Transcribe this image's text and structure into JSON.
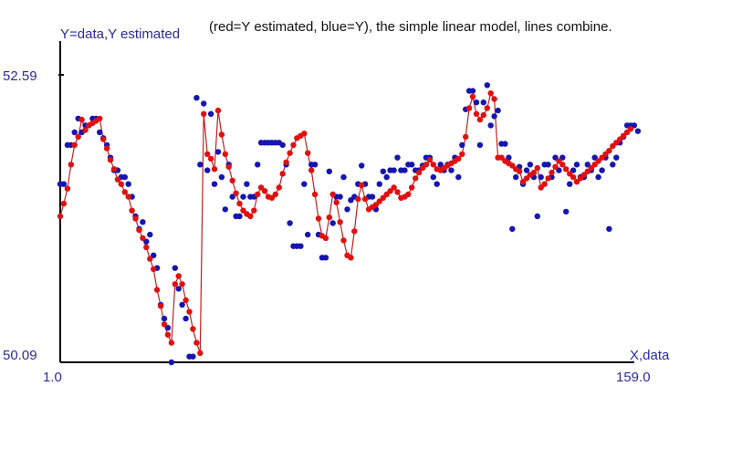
{
  "chart_data": {
    "type": "scatter",
    "ylabel": "Y=data,Y estimated",
    "xlabel": "X,data",
    "caption": "(red=Y estimated, blue=Y), the simple linear model, lines combine.",
    "xlim": [
      1.0,
      159.0
    ],
    "ylim": [
      50.09,
      52.59
    ],
    "x_tick_labels": [
      "1.0",
      "159.0"
    ],
    "y_tick_labels": [
      "50.09",
      "52.59"
    ],
    "grid": false,
    "legend": "none",
    "colors": {
      "estimated": "#e01010",
      "data": "#1515b0",
      "line": "#c02020",
      "axis": "#000000",
      "label": "#2a2a9e"
    },
    "series": [
      {
        "key": "data",
        "values": [
          51.64,
          51.64,
          51.98,
          51.98,
          52.09,
          52.21,
          52.09,
          52.15,
          52.15,
          52.21,
          52.21,
          52.09,
          52.04,
          51.98,
          51.87,
          51.76,
          51.76,
          51.7,
          51.7,
          51.64,
          51.53,
          51.36,
          51.25,
          51.31,
          51.14,
          51.2,
          51.02,
          50.91,
          50.59,
          50.47,
          50.39,
          50.09,
          50.91,
          50.73,
          50.59,
          50.47,
          50.14,
          50.14,
          52.39,
          51.81,
          52.34,
          51.76,
          52.25,
          51.64,
          51.92,
          51.7,
          51.42,
          51.81,
          51.53,
          51.36,
          51.36,
          51.53,
          51.64,
          51.53,
          51.53,
          51.81,
          52.0,
          52.0,
          52.0,
          52.0,
          52.0,
          52.0,
          51.98,
          51.81,
          51.3,
          51.1,
          51.1,
          51.1,
          51.64,
          51.2,
          51.81,
          51.81,
          51.2,
          51.0,
          51.0,
          51.75,
          51.3,
          51.53,
          51.53,
          51.7,
          51.42,
          51.5,
          51.53,
          51.64,
          51.8,
          51.64,
          51.53,
          51.53,
          51.42,
          51.64,
          51.75,
          51.7,
          51.76,
          51.76,
          51.87,
          51.76,
          51.76,
          51.81,
          51.81,
          51.76,
          51.76,
          51.8,
          51.87,
          51.87,
          51.7,
          51.64,
          51.81,
          51.76,
          51.81,
          51.76,
          51.87,
          51.7,
          51.98,
          52.29,
          52.45,
          52.45,
          52.35,
          51.98,
          52.35,
          52.5,
          52.15,
          52.23,
          52.28,
          51.99,
          51.99,
          51.87,
          51.25,
          51.7,
          51.79,
          51.64,
          51.76,
          51.81,
          51.7,
          51.36,
          51.7,
          51.81,
          51.81,
          51.7,
          51.87,
          51.76,
          51.87,
          51.4,
          51.64,
          51.76,
          51.81,
          51.7,
          51.7,
          51.81,
          51.76,
          51.87,
          51.7,
          51.76,
          51.87,
          51.25,
          51.81,
          51.87,
          52.0,
          52.05,
          52.15,
          52.15,
          52.15,
          52.1
        ]
      },
      {
        "key": "estimated",
        "values": [
          51.36,
          51.47,
          51.6,
          51.81,
          51.98,
          52.05,
          52.2,
          52.11,
          52.15,
          52.17,
          52.19,
          52.21,
          52.03,
          51.95,
          51.85,
          51.77,
          51.68,
          51.64,
          51.57,
          51.53,
          51.41,
          51.34,
          51.24,
          51.17,
          51.09,
          50.99,
          50.9,
          50.72,
          50.58,
          50.42,
          50.33,
          50.26,
          50.77,
          50.84,
          50.77,
          50.63,
          50.53,
          50.38,
          50.26,
          50.17,
          52.25,
          51.9,
          51.86,
          51.77,
          52.28,
          52.07,
          51.9,
          51.79,
          51.67,
          51.56,
          51.47,
          51.41,
          51.38,
          51.36,
          51.41,
          51.55,
          51.61,
          51.58,
          51.53,
          51.52,
          51.55,
          51.61,
          51.73,
          51.83,
          51.91,
          51.98,
          52.04,
          52.06,
          52.08,
          51.91,
          51.76,
          51.55,
          51.34,
          51.19,
          51.17,
          51.35,
          51.55,
          51.48,
          51.31,
          51.15,
          51.02,
          51.0,
          51.23,
          51.51,
          51.63,
          51.51,
          51.42,
          51.44,
          51.46,
          51.49,
          51.52,
          51.55,
          51.58,
          51.61,
          51.57,
          51.52,
          51.53,
          51.55,
          51.61,
          51.69,
          51.74,
          51.78,
          51.81,
          51.85,
          51.81,
          51.77,
          51.76,
          51.78,
          51.8,
          51.82,
          51.84,
          51.86,
          51.9,
          52.05,
          52.3,
          52.4,
          52.25,
          52.2,
          52.24,
          52.3,
          52.43,
          52.38,
          51.87,
          51.87,
          51.84,
          51.82,
          51.8,
          51.77,
          51.75,
          51.66,
          51.69,
          51.72,
          51.74,
          51.78,
          51.61,
          51.64,
          51.69,
          51.74,
          51.79,
          51.84,
          51.81,
          51.77,
          51.73,
          51.7,
          51.66,
          51.69,
          51.72,
          51.75,
          51.78,
          51.81,
          51.84,
          51.87,
          51.9,
          51.93,
          51.97,
          52.0,
          52.03,
          52.06,
          52.09,
          52.12
        ]
      }
    ]
  }
}
